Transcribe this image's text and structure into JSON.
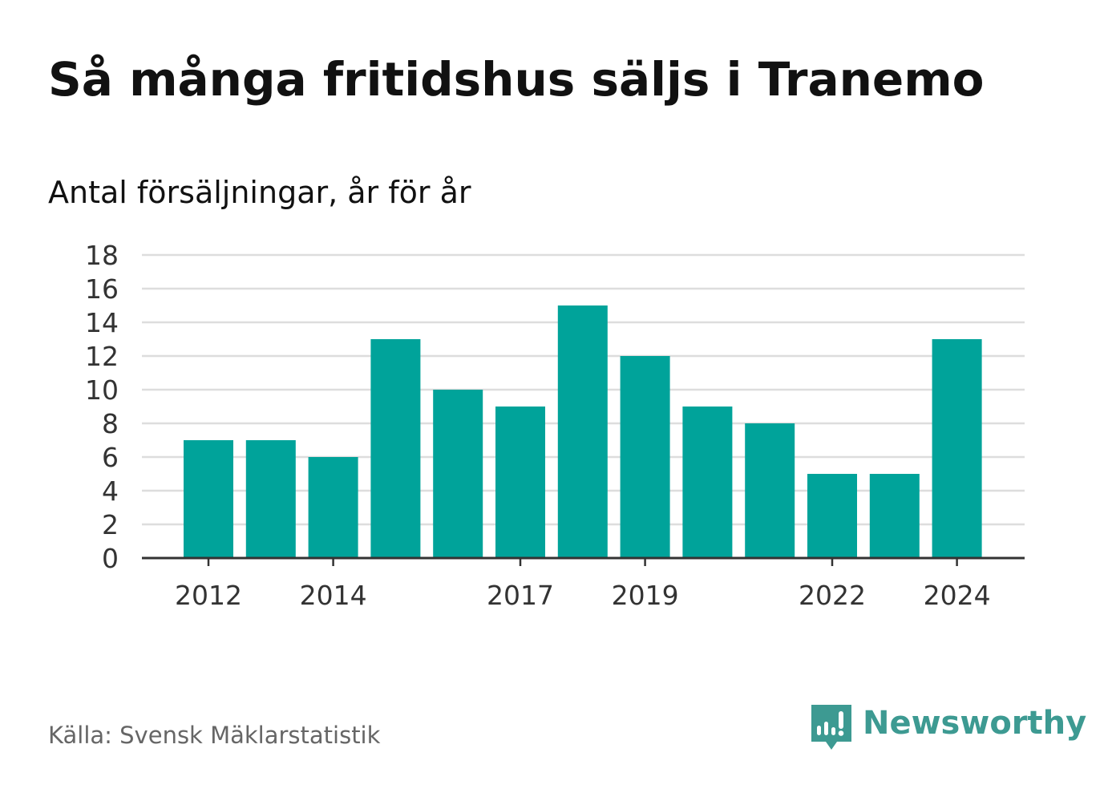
{
  "title": "Så många fritidshus säljs i Tranemo",
  "subtitle": "Antal försäljningar, år för år",
  "source": "Källa: Svensk Mäklarstatistik",
  "brand": {
    "name": "Newsworthy",
    "icon": "newsworthy-logo-icon",
    "color": "#3d9a92"
  },
  "colors": {
    "bar": "#00a39a",
    "grid": "#dddddd",
    "axis": "#333333"
  },
  "chart_data": {
    "type": "bar",
    "categories": [
      "2012",
      "2013",
      "2014",
      "2015",
      "2016",
      "2017",
      "2018",
      "2019",
      "2020",
      "2021",
      "2022",
      "2023",
      "2024"
    ],
    "values": [
      7,
      7,
      6,
      13,
      10,
      9,
      15,
      12,
      9,
      8,
      5,
      5,
      13
    ],
    "x_tick_labels": [
      "2012",
      "2014",
      "2017",
      "2019",
      "2022",
      "2024"
    ],
    "y_ticks": [
      0,
      2,
      4,
      6,
      8,
      10,
      12,
      14,
      16,
      18
    ],
    "ylim": [
      0,
      18
    ],
    "grid": true,
    "legend": "none",
    "xlabel": "",
    "ylabel": ""
  }
}
